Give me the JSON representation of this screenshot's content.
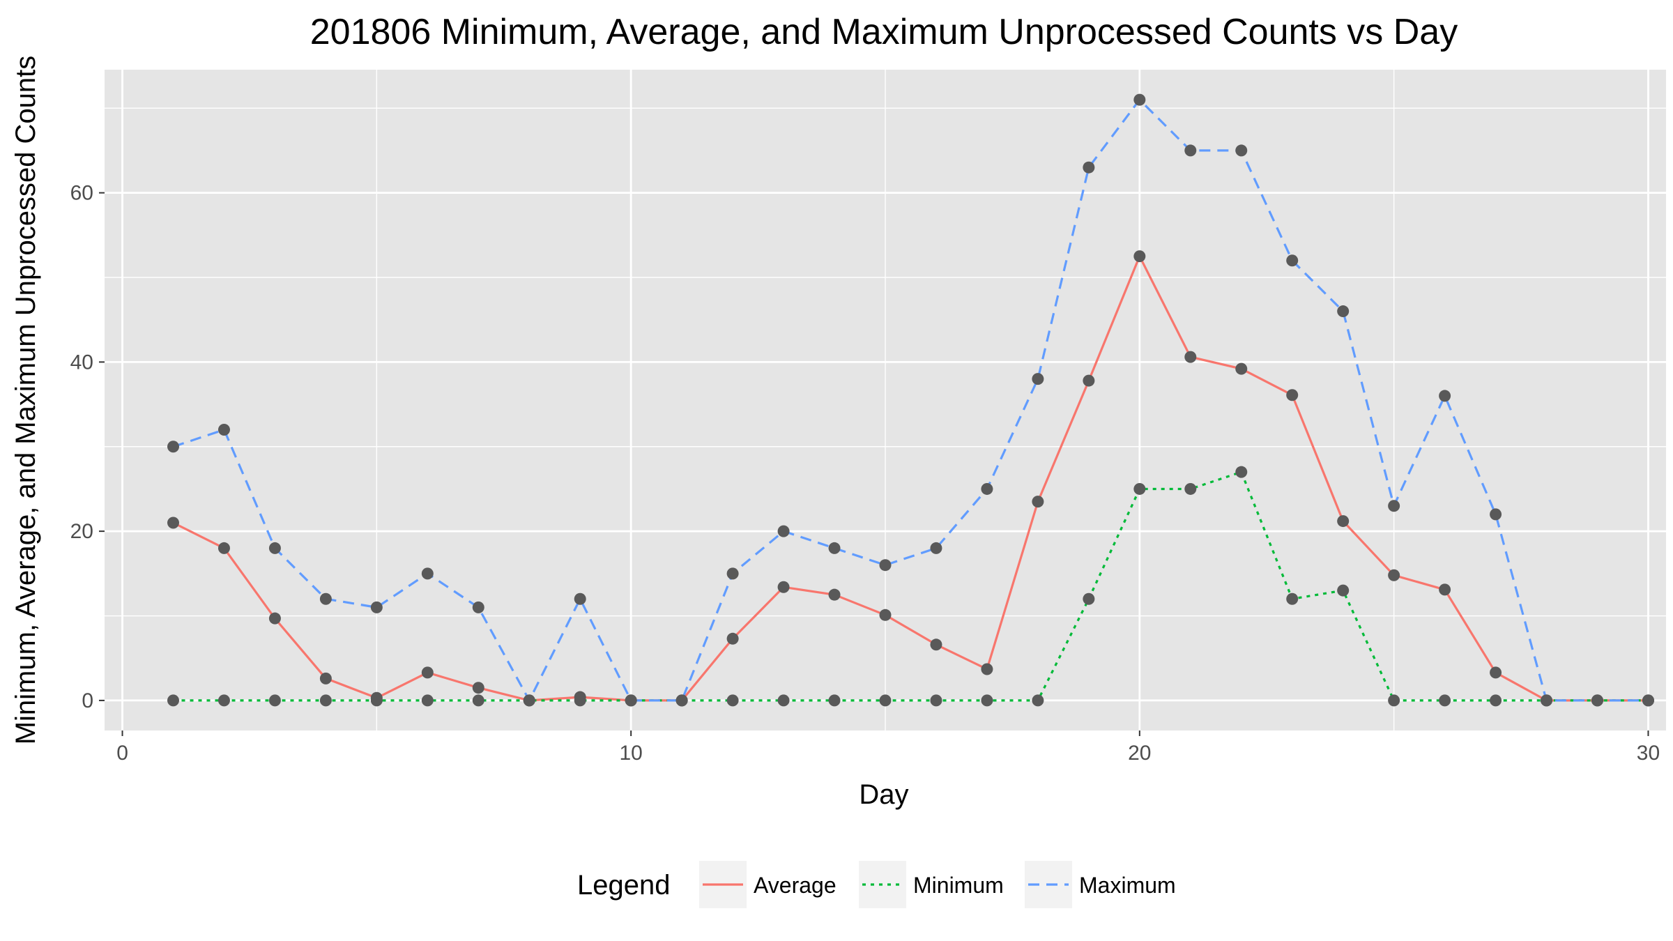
{
  "chart_data": {
    "type": "line",
    "title": "201806 Minimum, Average, and Maximum Unprocessed Counts vs Day",
    "xlabel": "Day",
    "ylabel": "Minimum, Average, and Maximum Unprocessed Counts",
    "xlim": [
      -0.35,
      30.35
    ],
    "ylim": [
      -3.55,
      74.55
    ],
    "x_ticks": [
      0,
      10,
      20,
      30
    ],
    "y_ticks": [
      0,
      20,
      40,
      60
    ],
    "x_tick_labels": [
      "0",
      "10",
      "20",
      "30"
    ],
    "y_tick_labels": [
      "0",
      "20",
      "40",
      "60"
    ],
    "grid": true,
    "legend_position": "bottom",
    "legend_title": "Legend",
    "x": [
      1,
      2,
      3,
      4,
      5,
      6,
      7,
      8,
      9,
      10,
      11,
      12,
      13,
      14,
      15,
      16,
      17,
      18,
      19,
      20,
      21,
      22,
      23,
      24,
      25,
      26,
      27,
      28,
      29,
      30
    ],
    "series": [
      {
        "name": "Average",
        "color": "#F8766D",
        "dash": "solid",
        "values": [
          21,
          18,
          9.7,
          2.6,
          0.3,
          3.3,
          1.5,
          0,
          0.4,
          0,
          0,
          7.3,
          13.4,
          12.5,
          10.1,
          6.6,
          3.7,
          23.5,
          37.8,
          52.5,
          40.6,
          39.2,
          36.1,
          21.2,
          14.8,
          13.1,
          3.3,
          0,
          0,
          0
        ]
      },
      {
        "name": "Minimum",
        "color": "#00BA38",
        "dash": "dotted",
        "values": [
          0,
          0,
          0,
          0,
          0,
          0,
          0,
          0,
          0,
          0,
          0,
          0,
          0,
          0,
          0,
          0,
          0,
          0,
          12,
          25,
          25,
          27,
          12,
          13,
          0,
          0,
          0,
          0,
          0,
          0
        ]
      },
      {
        "name": "Maximum",
        "color": "#619CFF",
        "dash": "dashed",
        "values": [
          30,
          32,
          18,
          12,
          11,
          15,
          11,
          0,
          12,
          0,
          0,
          15,
          20,
          18,
          16,
          18,
          25,
          38,
          63,
          71,
          65,
          65,
          52,
          46,
          23,
          36,
          22,
          0,
          0,
          0
        ]
      }
    ],
    "colors": {
      "panel_background": "#E5E5E5",
      "grid_major": "#FFFFFF",
      "point": "#595959"
    }
  }
}
